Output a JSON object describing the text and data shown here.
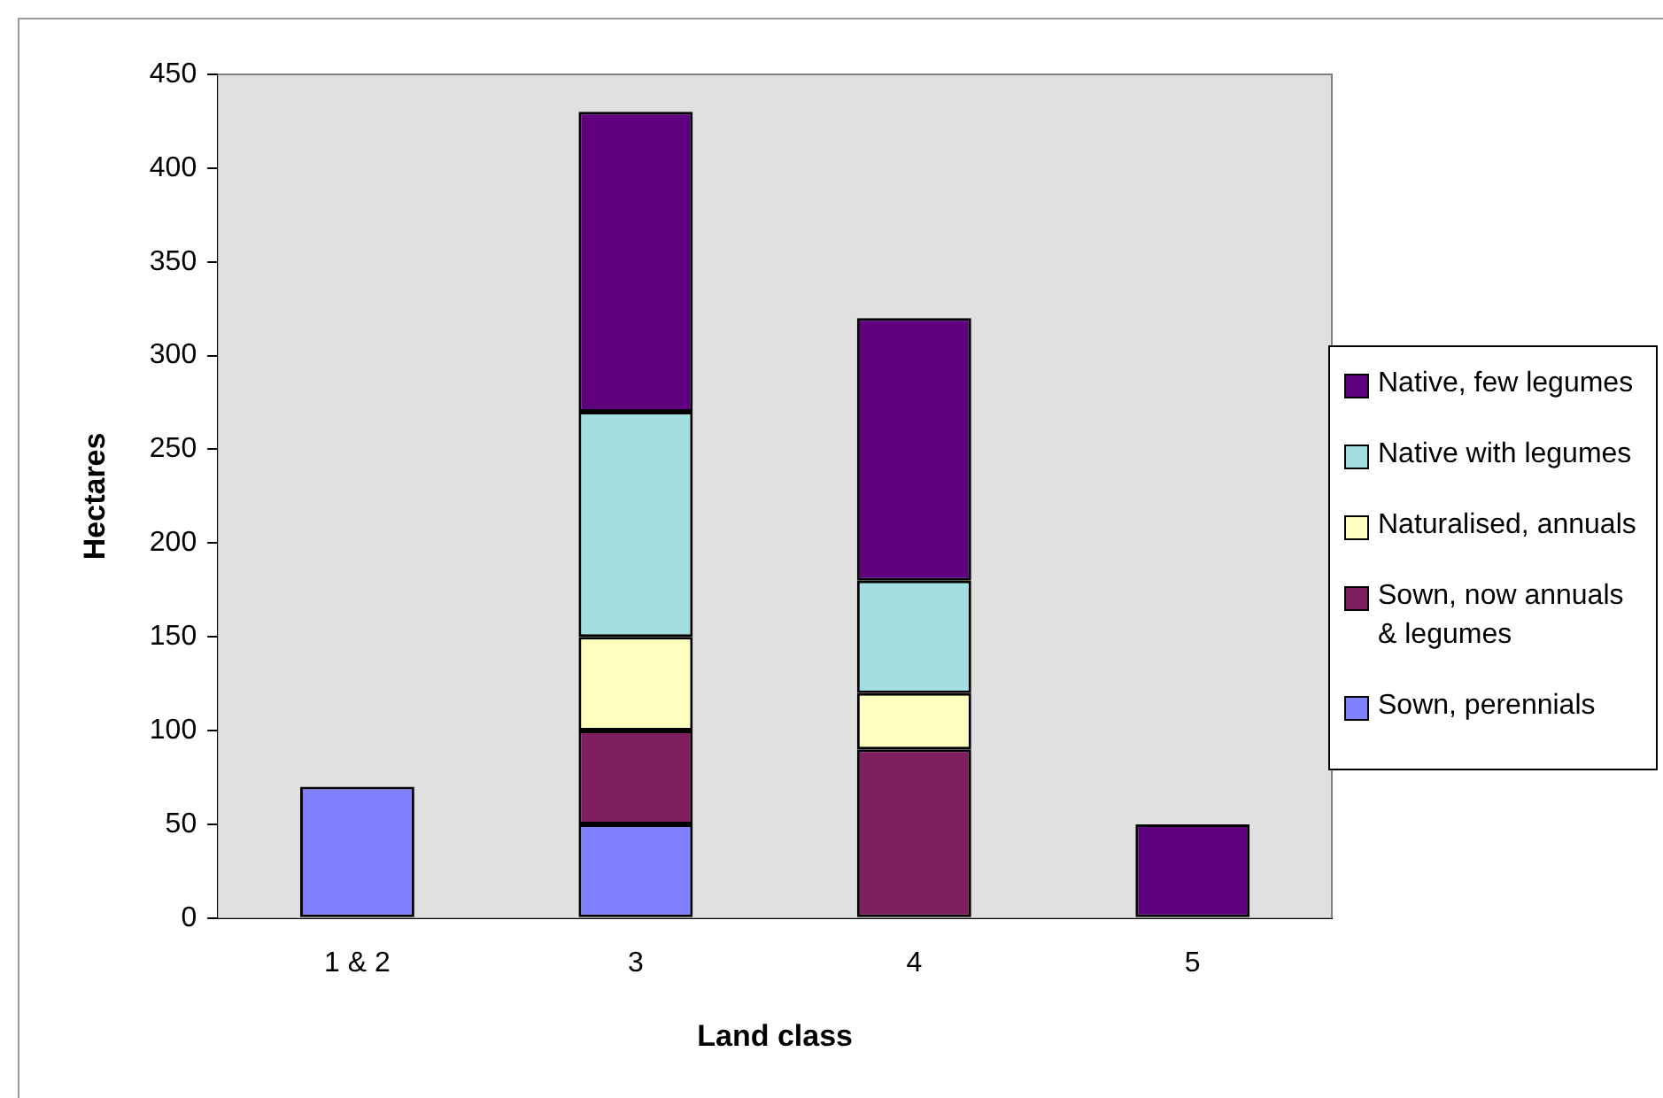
{
  "chart_data": {
    "type": "bar",
    "stacked": true,
    "xlabel": "Land class",
    "ylabel": "Hectares",
    "categories": [
      "1 & 2",
      "3",
      "4",
      "5"
    ],
    "ylim": [
      0,
      450
    ],
    "yticks": [
      0,
      50,
      100,
      150,
      200,
      250,
      300,
      350,
      400,
      450
    ],
    "grid": false,
    "legend": "right",
    "series": [
      {
        "name": "Sown, perennials",
        "color": "#8080ff",
        "values": [
          70,
          50,
          0,
          0
        ]
      },
      {
        "name": "Sown, now annuals & legumes",
        "color": "#7f1f5f",
        "values": [
          0,
          50,
          90,
          0
        ]
      },
      {
        "name": "Naturalised, annuals",
        "color": "#ffffc0",
        "values": [
          0,
          50,
          30,
          0
        ]
      },
      {
        "name": "Native with legumes",
        "color": "#a3dfe0",
        "values": [
          0,
          120,
          60,
          0
        ]
      },
      {
        "name": "Native, few legumes",
        "color": "#5f007f",
        "values": [
          0,
          160,
          140,
          50
        ]
      }
    ]
  }
}
